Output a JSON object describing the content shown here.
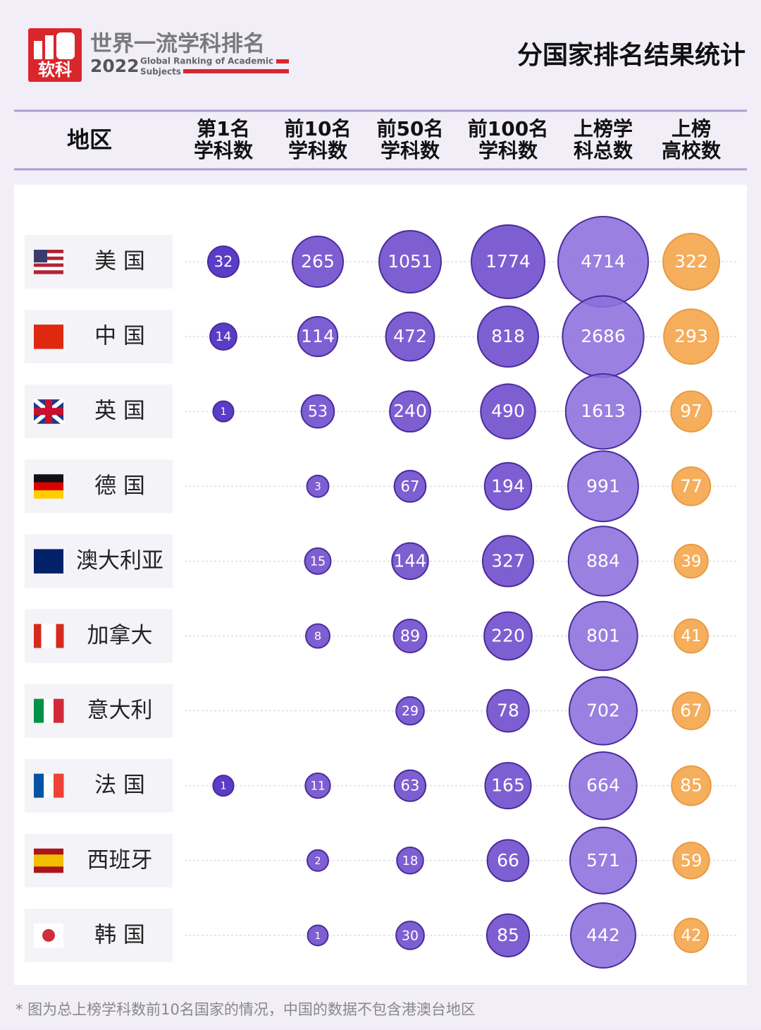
{
  "header": {
    "logo_text": "软科",
    "brand_title": "世界一流学科排名",
    "year": "2022",
    "subtitle_line1": "Global Ranking of Academic",
    "subtitle_line2": "Subjects",
    "title": "分国家排名结果统计"
  },
  "table": {
    "region_header": "地区",
    "columns": [
      [
        "第1名",
        "学科数"
      ],
      [
        "前10名",
        "学科数"
      ],
      [
        "前50名",
        "学科数"
      ],
      [
        "前100名",
        "学科数"
      ],
      [
        "上榜学",
        "科总数"
      ],
      [
        "上榜",
        "高校数"
      ]
    ],
    "rows": [
      {
        "region": "美 国",
        "values": [
          32,
          265,
          1051,
          1774,
          4714,
          322
        ]
      },
      {
        "region": "中 国",
        "values": [
          14,
          114,
          472,
          818,
          2686,
          293
        ]
      },
      {
        "region": "英 国",
        "values": [
          1,
          53,
          240,
          490,
          1613,
          97
        ]
      },
      {
        "region": "德 国",
        "values": [
          null,
          3,
          67,
          194,
          991,
          77
        ]
      },
      {
        "region": "澳大利亚",
        "values": [
          null,
          15,
          144,
          327,
          884,
          39
        ]
      },
      {
        "region": "加拿大",
        "values": [
          null,
          8,
          89,
          220,
          801,
          41
        ]
      },
      {
        "region": "意大利",
        "values": [
          null,
          null,
          29,
          78,
          702,
          67
        ]
      },
      {
        "region": "法 国",
        "values": [
          1,
          11,
          63,
          165,
          664,
          85
        ]
      },
      {
        "region": "西班牙",
        "values": [
          null,
          2,
          18,
          66,
          571,
          59
        ]
      },
      {
        "region": "韩 国",
        "values": [
          null,
          1,
          30,
          85,
          442,
          42
        ]
      }
    ]
  },
  "footnote": "* 图为总上榜学科数前10名国家的情况，中国的数据不包含港澳台地区"
}
